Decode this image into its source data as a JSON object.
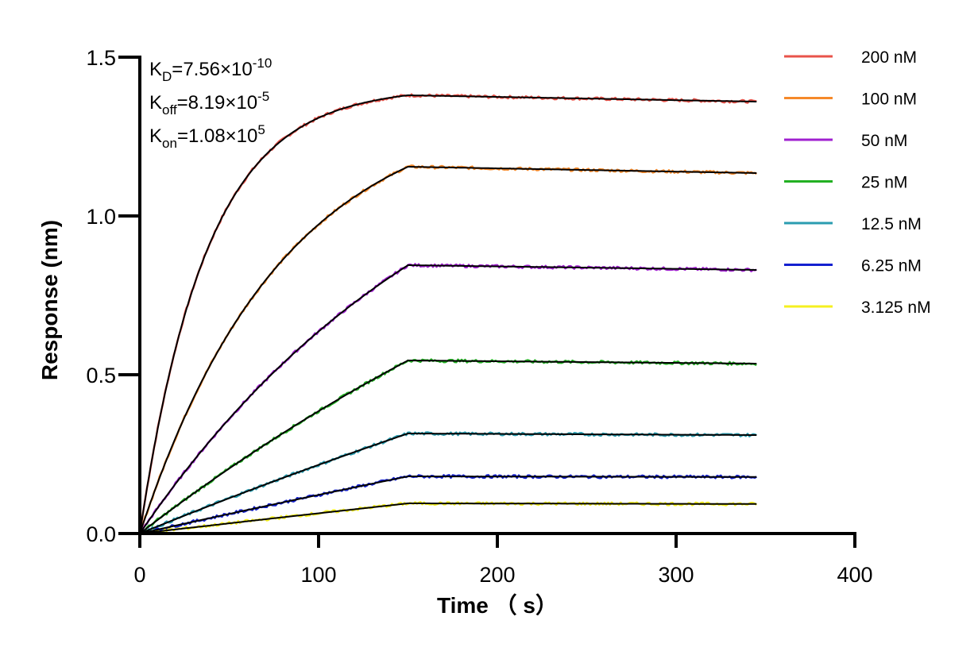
{
  "chart_data": {
    "type": "line",
    "title": "",
    "xlabel": "Time （ s）",
    "ylabel": "Response (nm)",
    "xlim": [
      0,
      400
    ],
    "ylim": [
      0,
      1.5
    ],
    "x_ticks": [
      0,
      100,
      200,
      300,
      400
    ],
    "x_tick_labels": [
      "0",
      "100",
      "200",
      "300",
      "400"
    ],
    "y_ticks": [
      0,
      0.5,
      1.0,
      1.5
    ],
    "y_tick_labels": [
      "0.0",
      "0.5",
      "1.0",
      "1.5"
    ],
    "grid": false,
    "legend_position": "right",
    "association_end_s": 150,
    "dissociation_end_s": 345,
    "fit_line_color": "#000000",
    "annotations": [
      {
        "base": "K",
        "sub": "D",
        "value": "=7.56×10",
        "sup": "-10"
      },
      {
        "base": "K",
        "sub": "off",
        "value": "=8.19×10",
        "sup": "-5"
      },
      {
        "base": "K",
        "sub": "on",
        "value": "=1.08×10",
        "sup": "5"
      }
    ],
    "series": [
      {
        "name": "200 nM",
        "color": "#e8534a",
        "plateau": 1.38,
        "end": 1.36,
        "kobs": 0.0268
      },
      {
        "name": "100 nM",
        "color": "#f5892a",
        "plateau": 1.155,
        "end": 1.135,
        "kobs": 0.0125
      },
      {
        "name": "50 nM",
        "color": "#a020d0",
        "plateau": 0.845,
        "end": 0.83,
        "kobs": 0.0055
      },
      {
        "name": "25 nM",
        "color": "#22b022",
        "plateau": 0.545,
        "end": 0.535,
        "kobs": 0.0025
      },
      {
        "name": "12.5 nM",
        "color": "#2a9db0",
        "plateau": 0.315,
        "end": 0.31,
        "kobs": 0.0012
      },
      {
        "name": "6.25 nM",
        "color": "#1420d0",
        "plateau": 0.18,
        "end": 0.178,
        "kobs": 0.0006
      },
      {
        "name": "3.125 nM",
        "color": "#f5f020",
        "plateau": 0.095,
        "end": 0.093,
        "kobs": 0.0003
      }
    ]
  }
}
